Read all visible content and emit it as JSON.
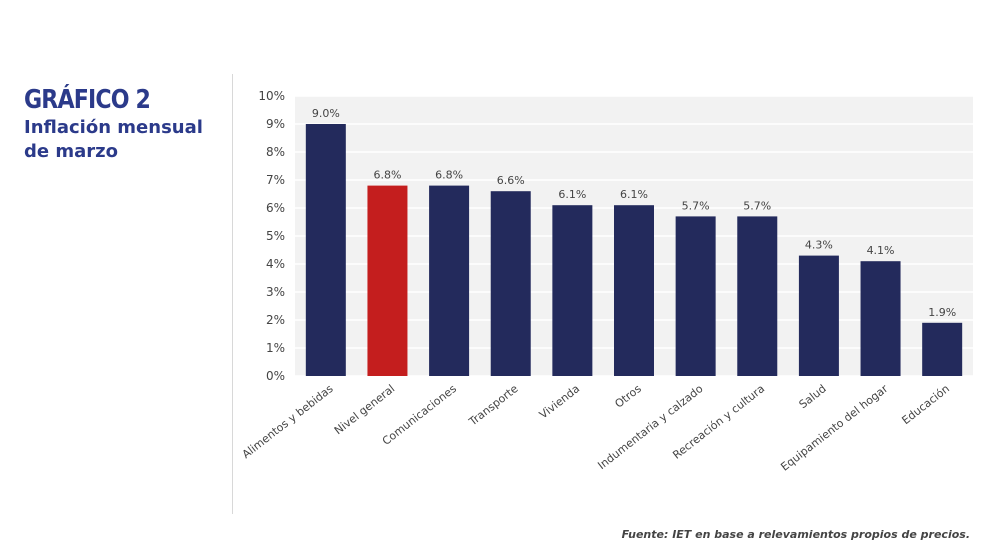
{
  "heading": {
    "title": "GRÁFICO 2",
    "subtitle": "Inflación mensual de marzo"
  },
  "source_note": "Fuente: IET en base a relevamientos propios de precios.",
  "colors": {
    "bar_default": "#232a5c",
    "bar_highlight": "#c41e1e",
    "plot_background": "#f2f2f2",
    "gridline": "#ffffff",
    "title": "#2b3a8a"
  },
  "chart_data": {
    "type": "bar",
    "title": "",
    "xlabel": "",
    "ylabel": "",
    "ylim": [
      0,
      10
    ],
    "yticks": [
      0,
      1,
      2,
      3,
      4,
      5,
      6,
      7,
      8,
      9,
      10
    ],
    "ytick_labels": [
      "0%",
      "1%",
      "2%",
      "3%",
      "4%",
      "5%",
      "6%",
      "7%",
      "8%",
      "9%",
      "10%"
    ],
    "grid": true,
    "categories": [
      "Alimentos y bebidas",
      "Nivel general",
      "Comunicaciones",
      "Transporte",
      "Vivienda",
      "Otros",
      "Indumentaria y calzado",
      "Recreación y cultura",
      "Salud",
      "Equipamiento del hogar",
      "Educación"
    ],
    "values": [
      9.0,
      6.8,
      6.8,
      6.6,
      6.1,
      6.1,
      5.7,
      5.7,
      4.3,
      4.1,
      1.9
    ],
    "data_labels": [
      "9.0%",
      "6.8%",
      "6.8%",
      "6.6%",
      "6.1%",
      "6.1%",
      "5.7%",
      "5.7%",
      "4.3%",
      "4.1%",
      "1.9%"
    ],
    "highlight_category": "Nivel general"
  }
}
